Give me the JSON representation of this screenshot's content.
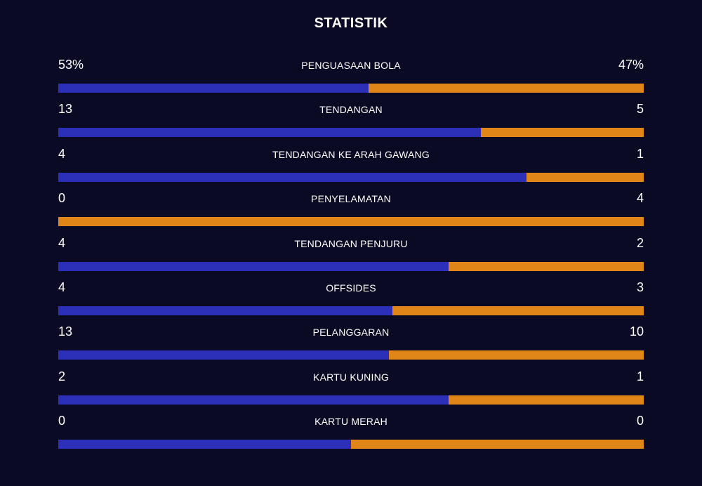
{
  "title": "STATISTIK",
  "colors": {
    "background": "#0a0a24",
    "home": "#2c2fb8",
    "away": "#e08618"
  },
  "stats": [
    {
      "label": "PENGUASAAN BOLA",
      "left": "53%",
      "right": "47%",
      "home_share": 0.53
    },
    {
      "label": "TENDANGAN",
      "left": "13",
      "right": "5",
      "home_share": 0.722
    },
    {
      "label": "TENDANGAN KE ARAH GAWANG",
      "left": "4",
      "right": "1",
      "home_share": 0.8
    },
    {
      "label": "PENYELAMATAN",
      "left": "0",
      "right": "4",
      "home_share": 0.0
    },
    {
      "label": "TENDANGAN PENJURU",
      "left": "4",
      "right": "2",
      "home_share": 0.667
    },
    {
      "label": "OFFSIDES",
      "left": "4",
      "right": "3",
      "home_share": 0.571
    },
    {
      "label": "PELANGGARAN",
      "left": "13",
      "right": "10",
      "home_share": 0.565
    },
    {
      "label": "KARTU KUNING",
      "left": "2",
      "right": "1",
      "home_share": 0.667
    },
    {
      "label": "KARTU MERAH",
      "left": "0",
      "right": "0",
      "home_share": 0.5
    }
  ]
}
